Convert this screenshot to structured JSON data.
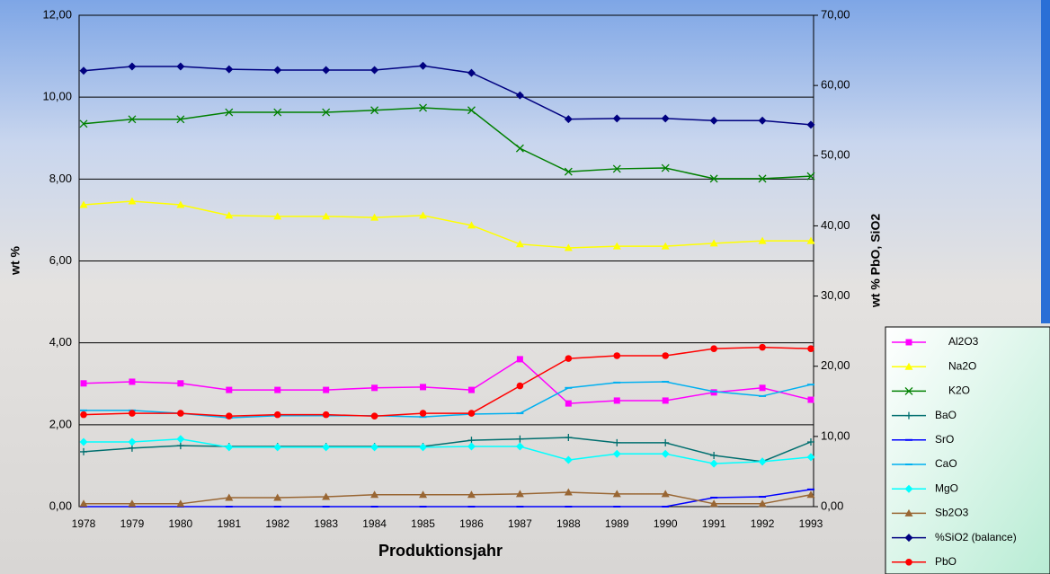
{
  "chart_data": {
    "type": "line",
    "categories": [
      "1978",
      "1979",
      "1980",
      "1981",
      "1982",
      "1983",
      "1984",
      "1985",
      "1986",
      "1987",
      "1988",
      "1989",
      "1990",
      "1991",
      "1992",
      "1993"
    ],
    "x_label": "Produktionsjahr",
    "y_label": "wt %",
    "y2_label": "wt % PbO, SiO2",
    "ylim": [
      0,
      12
    ],
    "yticks": [
      {
        "value": 0,
        "label": "0,00"
      },
      {
        "value": 2,
        "label": "2,00"
      },
      {
        "value": 4,
        "label": "4,00"
      },
      {
        "value": 6,
        "label": "6,00"
      },
      {
        "value": 8,
        "label": "8,00"
      },
      {
        "value": 10,
        "label": "10,00"
      },
      {
        "value": 12,
        "label": "12,00"
      }
    ],
    "y2lim": [
      0,
      70
    ],
    "y2ticks": [
      {
        "value": 0,
        "label": "0,00"
      },
      {
        "value": 10,
        "label": "10,00"
      },
      {
        "value": 20,
        "label": "20,00"
      },
      {
        "value": 30,
        "label": "30,00"
      },
      {
        "value": 40,
        "label": "40,00"
      },
      {
        "value": 50,
        "label": "50,00"
      },
      {
        "value": 60,
        "label": "60,00"
      },
      {
        "value": 70,
        "label": "70,00"
      }
    ],
    "grid": true,
    "legend": "bottom-right",
    "series": [
      {
        "name": "Al2O3",
        "color": "#ff00ff",
        "marker": "square",
        "values": [
          3.01,
          3.05,
          3.01,
          2.85,
          2.85,
          2.85,
          2.9,
          2.92,
          2.85,
          3.6,
          2.52,
          2.59,
          2.59,
          2.79,
          2.9,
          2.61
        ]
      },
      {
        "name": "Na2O",
        "color": "#ffff00",
        "marker": "triangle",
        "values": [
          7.37,
          7.46,
          7.37,
          7.11,
          7.09,
          7.09,
          7.06,
          7.11,
          6.87,
          6.41,
          6.32,
          6.36,
          6.36,
          6.43,
          6.49,
          6.49
        ]
      },
      {
        "name": "K2O",
        "color": "#008000",
        "marker": "x",
        "values": [
          9.35,
          9.46,
          9.46,
          9.63,
          9.63,
          9.63,
          9.68,
          9.74,
          9.68,
          8.75,
          8.18,
          8.25,
          8.27,
          8.01,
          8.01,
          8.07
        ]
      },
      {
        "name": "BaO",
        "color": "#006f6f",
        "marker": "plus",
        "values": [
          1.34,
          1.43,
          1.49,
          1.47,
          1.47,
          1.47,
          1.47,
          1.47,
          1.62,
          1.65,
          1.69,
          1.56,
          1.56,
          1.25,
          1.1,
          1.58
        ]
      },
      {
        "name": "SrO",
        "color": "#0000ff",
        "marker": "dash",
        "values": [
          0,
          0,
          0,
          0,
          0,
          0,
          0,
          0,
          0,
          0,
          0,
          0,
          0,
          0.22,
          0.24,
          0.42
        ]
      },
      {
        "name": "CaO",
        "color": "#00b0f0",
        "marker": "dash",
        "values": [
          2.35,
          2.35,
          2.28,
          2.17,
          2.22,
          2.22,
          2.22,
          2.19,
          2.26,
          2.28,
          2.9,
          3.03,
          3.05,
          2.81,
          2.7,
          2.98
        ]
      },
      {
        "name": "MgO",
        "color": "#00ffff",
        "marker": "diamond",
        "values": [
          1.58,
          1.58,
          1.65,
          1.45,
          1.45,
          1.45,
          1.45,
          1.45,
          1.47,
          1.47,
          1.14,
          1.29,
          1.29,
          1.05,
          1.1,
          1.21
        ]
      },
      {
        "name": "Sb2O3",
        "color": "#996633",
        "marker": "triangle",
        "values": [
          0.07,
          0.07,
          0.07,
          0.22,
          0.22,
          0.24,
          0.29,
          0.29,
          0.29,
          0.31,
          0.35,
          0.31,
          0.31,
          0.07,
          0.07,
          0.29
        ]
      },
      {
        "name": "%SiO2 (balance)",
        "color": "#000080",
        "marker": "diamond",
        "axis": "y2",
        "values": [
          62.1,
          62.7,
          62.7,
          62.3,
          62.2,
          62.2,
          62.2,
          62.8,
          61.8,
          58.6,
          55.2,
          55.3,
          55.3,
          55.0,
          55.0,
          54.4
        ]
      },
      {
        "name": "PbO",
        "color": "#ff0000",
        "marker": "circle",
        "axis": "y2",
        "values": [
          13.1,
          13.3,
          13.3,
          12.9,
          13.1,
          13.1,
          12.9,
          13.3,
          13.3,
          17.2,
          21.1,
          21.5,
          21.5,
          22.5,
          22.7,
          22.5
        ]
      }
    ]
  }
}
